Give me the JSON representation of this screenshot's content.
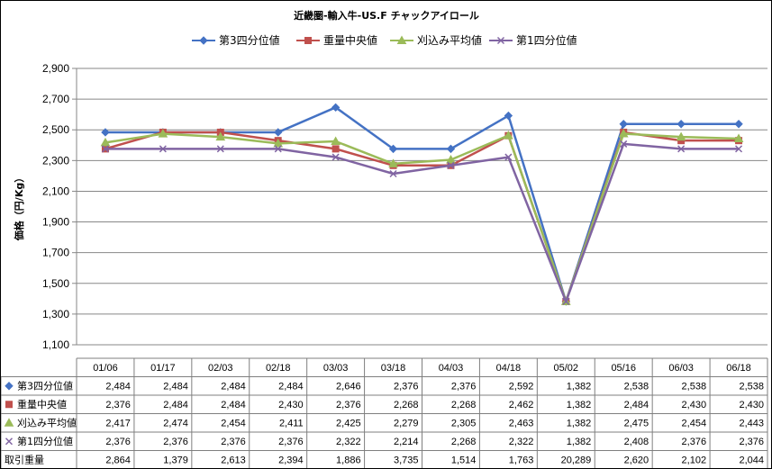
{
  "chart_data": {
    "type": "line",
    "title": "近畿圏-輸入牛-US.F チャックアイロール",
    "ylabel": "価格（円/Kg）",
    "ylim": [
      1100,
      2900
    ],
    "yticks": [
      "1,100",
      "1,300",
      "1,500",
      "1,700",
      "1,900",
      "2,100",
      "2,300",
      "2,500",
      "2,700",
      "2,900"
    ],
    "ytick_values": [
      1100,
      1300,
      1500,
      1700,
      1900,
      2100,
      2300,
      2500,
      2700,
      2900
    ],
    "grid": true,
    "legend_position": "top",
    "categories": [
      "01/06",
      "01/17",
      "02/03",
      "02/18",
      "03/03",
      "03/18",
      "04/03",
      "04/18",
      "05/02",
      "05/16",
      "06/03",
      "06/18"
    ],
    "series": [
      {
        "name": "第3四分位値",
        "color": "#4472C4",
        "marker": "diamond",
        "values": [
          2484,
          2484,
          2484,
          2484,
          2646,
          2376,
          2376,
          2592,
          1382,
          2538,
          2538,
          2538
        ],
        "labels": [
          "2,484",
          "2,484",
          "2,484",
          "2,484",
          "2,646",
          "2,376",
          "2,376",
          "2,592",
          "1,382",
          "2,538",
          "2,538",
          "2,538"
        ]
      },
      {
        "name": "重量中央値",
        "color": "#C0504D",
        "marker": "square",
        "values": [
          2376,
          2484,
          2484,
          2430,
          2376,
          2268,
          2268,
          2462,
          1382,
          2484,
          2430,
          2430
        ],
        "labels": [
          "2,376",
          "2,484",
          "2,484",
          "2,430",
          "2,376",
          "2,268",
          "2,268",
          "2,462",
          "1,382",
          "2,484",
          "2,430",
          "2,430"
        ]
      },
      {
        "name": "刈込み平均値",
        "color": "#9BBB59",
        "marker": "triangle",
        "values": [
          2417,
          2474,
          2454,
          2411,
          2425,
          2279,
          2305,
          2463,
          1382,
          2475,
          2454,
          2443
        ],
        "labels": [
          "2,417",
          "2,474",
          "2,454",
          "2,411",
          "2,425",
          "2,279",
          "2,305",
          "2,463",
          "1,382",
          "2,475",
          "2,454",
          "2,443"
        ]
      },
      {
        "name": "第1四分位値",
        "color": "#8064A2",
        "marker": "x",
        "values": [
          2376,
          2376,
          2376,
          2376,
          2322,
          2214,
          2268,
          2322,
          1382,
          2408,
          2376,
          2376
        ],
        "labels": [
          "2,376",
          "2,376",
          "2,376",
          "2,376",
          "2,322",
          "2,214",
          "2,268",
          "2,322",
          "1,382",
          "2,408",
          "2,376",
          "2,376"
        ]
      }
    ],
    "table_extra_row": {
      "name": "取引重量",
      "values": [
        2864,
        1379,
        2613,
        2394,
        1886,
        3735,
        1514,
        1763,
        20289,
        2620,
        2102,
        2044
      ],
      "labels": [
        "2,864",
        "1,379",
        "2,613",
        "2,394",
        "1,886",
        "3,735",
        "1,514",
        "1,763",
        "20,289",
        "2,620",
        "2,102",
        "2,044"
      ]
    }
  }
}
